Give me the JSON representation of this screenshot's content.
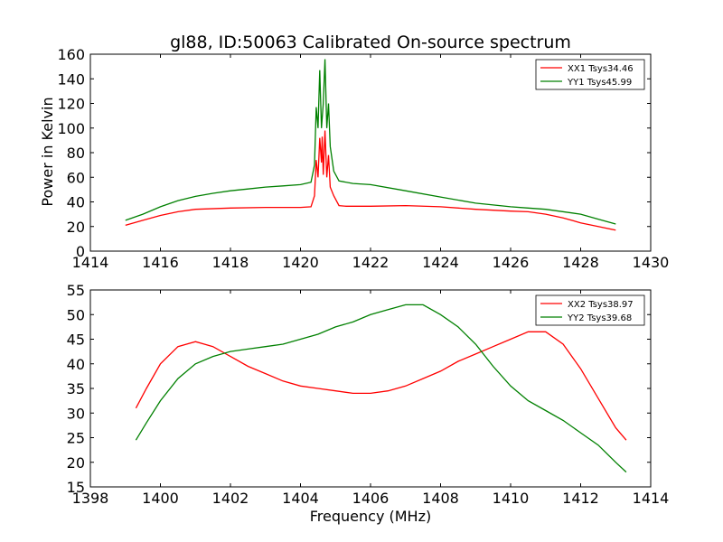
{
  "chart_data": [
    {
      "type": "line",
      "title": "gl88, ID:50063 Calibrated On-source spectrum",
      "xlabel": "",
      "ylabel": "Power in Kelvin",
      "xlim": [
        1414,
        1430
      ],
      "ylim": [
        0,
        160
      ],
      "xticks": [
        1414,
        1416,
        1418,
        1420,
        1422,
        1424,
        1426,
        1428,
        1430
      ],
      "yticks": [
        0,
        20,
        40,
        60,
        80,
        100,
        120,
        140,
        160
      ],
      "legend": "top-right",
      "grid": false,
      "series": [
        {
          "name": "XX1 Tsys34.46",
          "color": "#ff0000",
          "points": [
            [
              1415.0,
              21
            ],
            [
              1415.5,
              25
            ],
            [
              1416.0,
              29
            ],
            [
              1416.5,
              32
            ],
            [
              1417.0,
              34
            ],
            [
              1418.0,
              35
            ],
            [
              1419.0,
              35.5
            ],
            [
              1420.0,
              35.5
            ],
            [
              1420.3,
              36
            ],
            [
              1420.4,
              45
            ],
            [
              1420.45,
              74
            ],
            [
              1420.5,
              60
            ],
            [
              1420.55,
              92
            ],
            [
              1420.6,
              72
            ],
            [
              1420.62,
              93
            ],
            [
              1420.65,
              62
            ],
            [
              1420.7,
              98
            ],
            [
              1420.75,
              60
            ],
            [
              1420.8,
              78
            ],
            [
              1420.85,
              52
            ],
            [
              1420.95,
              45
            ],
            [
              1421.1,
              37
            ],
            [
              1421.3,
              36.5
            ],
            [
              1422.0,
              36.5
            ],
            [
              1423.0,
              37
            ],
            [
              1424.0,
              36
            ],
            [
              1425.0,
              34
            ],
            [
              1426.0,
              32.5
            ],
            [
              1426.5,
              32
            ],
            [
              1427.0,
              30
            ],
            [
              1427.5,
              27
            ],
            [
              1428.0,
              23
            ],
            [
              1428.5,
              20
            ],
            [
              1429.0,
              17
            ]
          ]
        },
        {
          "name": "YY1 Tsys45.99",
          "color": "#008000",
          "points": [
            [
              1415.0,
              25
            ],
            [
              1415.5,
              30
            ],
            [
              1416.0,
              36
            ],
            [
              1416.5,
              41
            ],
            [
              1417.0,
              44.5
            ],
            [
              1417.5,
              47
            ],
            [
              1418.0,
              49
            ],
            [
              1418.5,
              50.5
            ],
            [
              1419.0,
              52
            ],
            [
              1419.5,
              53
            ],
            [
              1420.0,
              54
            ],
            [
              1420.3,
              56
            ],
            [
              1420.4,
              70
            ],
            [
              1420.45,
              117
            ],
            [
              1420.5,
              100
            ],
            [
              1420.55,
              147
            ],
            [
              1420.6,
              100
            ],
            [
              1420.65,
              120
            ],
            [
              1420.7,
              156
            ],
            [
              1420.75,
              100
            ],
            [
              1420.8,
              120
            ],
            [
              1420.85,
              85
            ],
            [
              1420.95,
              65
            ],
            [
              1421.1,
              57
            ],
            [
              1421.5,
              55
            ],
            [
              1422.0,
              54
            ],
            [
              1423.0,
              49
            ],
            [
              1424.0,
              44
            ],
            [
              1425.0,
              39
            ],
            [
              1426.0,
              36
            ],
            [
              1426.5,
              35
            ],
            [
              1427.0,
              34
            ],
            [
              1428.0,
              30
            ],
            [
              1428.5,
              26
            ],
            [
              1429.0,
              22
            ]
          ]
        }
      ]
    },
    {
      "type": "line",
      "title": "",
      "xlabel": "Frequency (MHz)",
      "ylabel": "",
      "xlim": [
        1398,
        1414
      ],
      "ylim": [
        15,
        55
      ],
      "xticks": [
        1398,
        1400,
        1402,
        1404,
        1406,
        1408,
        1410,
        1412,
        1414
      ],
      "yticks": [
        15,
        20,
        25,
        30,
        35,
        40,
        45,
        50,
        55
      ],
      "legend": "top-right",
      "grid": false,
      "series": [
        {
          "name": "XX2 Tsys38.97",
          "color": "#ff0000",
          "points": [
            [
              1399.3,
              31
            ],
            [
              1399.6,
              35
            ],
            [
              1400.0,
              40
            ],
            [
              1400.5,
              43.5
            ],
            [
              1401.0,
              44.5
            ],
            [
              1401.5,
              43.5
            ],
            [
              1402.0,
              41.5
            ],
            [
              1402.5,
              39.5
            ],
            [
              1403.0,
              38
            ],
            [
              1403.5,
              36.5
            ],
            [
              1404.0,
              35.5
            ],
            [
              1404.5,
              35
            ],
            [
              1405.0,
              34.5
            ],
            [
              1405.5,
              34
            ],
            [
              1406.0,
              34
            ],
            [
              1406.5,
              34.5
            ],
            [
              1407.0,
              35.5
            ],
            [
              1407.5,
              37
            ],
            [
              1408.0,
              38.5
            ],
            [
              1408.5,
              40.5
            ],
            [
              1409.0,
              42
            ],
            [
              1409.5,
              43.5
            ],
            [
              1410.0,
              45
            ],
            [
              1410.5,
              46.5
            ],
            [
              1411.0,
              46.5
            ],
            [
              1411.5,
              44
            ],
            [
              1412.0,
              39
            ],
            [
              1412.5,
              33
            ],
            [
              1413.0,
              27
            ],
            [
              1413.3,
              24.5
            ]
          ]
        },
        {
          "name": "YY2 Tsys39.68",
          "color": "#008000",
          "points": [
            [
              1399.3,
              24.5
            ],
            [
              1399.6,
              28
            ],
            [
              1400.0,
              32.5
            ],
            [
              1400.5,
              37
            ],
            [
              1401.0,
              40
            ],
            [
              1401.5,
              41.5
            ],
            [
              1402.0,
              42.5
            ],
            [
              1402.5,
              43
            ],
            [
              1403.0,
              43.5
            ],
            [
              1403.5,
              44
            ],
            [
              1404.0,
              45
            ],
            [
              1404.5,
              46
            ],
            [
              1405.0,
              47.5
            ],
            [
              1405.5,
              48.5
            ],
            [
              1406.0,
              50
            ],
            [
              1406.5,
              51
            ],
            [
              1407.0,
              52
            ],
            [
              1407.5,
              52
            ],
            [
              1408.0,
              50
            ],
            [
              1408.5,
              47.5
            ],
            [
              1409.0,
              44
            ],
            [
              1409.5,
              39.5
            ],
            [
              1410.0,
              35.5
            ],
            [
              1410.5,
              32.5
            ],
            [
              1411.0,
              30.5
            ],
            [
              1411.5,
              28.5
            ],
            [
              1412.0,
              26
            ],
            [
              1412.5,
              23.5
            ],
            [
              1413.0,
              20
            ],
            [
              1413.3,
              18
            ]
          ]
        }
      ]
    }
  ]
}
